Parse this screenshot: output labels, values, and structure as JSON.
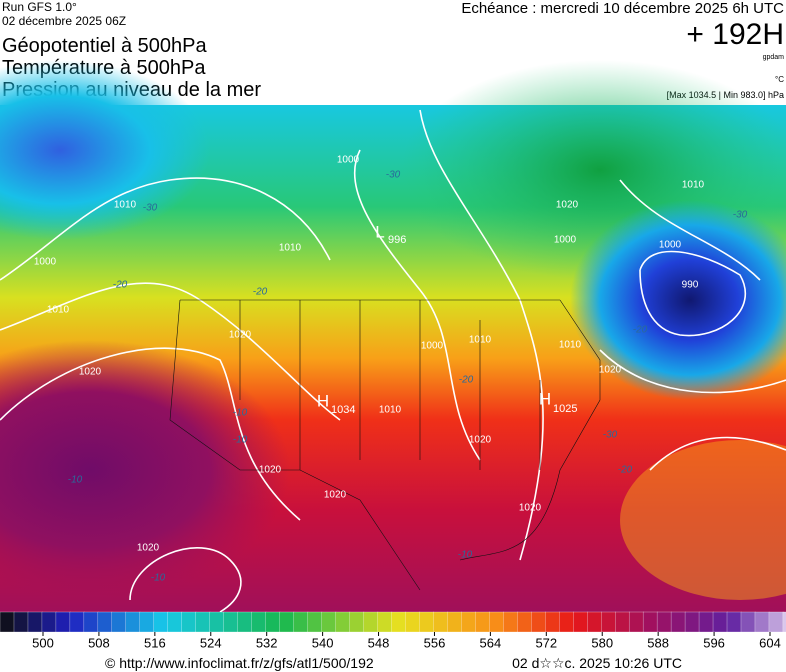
{
  "header": {
    "run": "Run GFS 1.0°",
    "date": "02 décembre 2025 06Z",
    "fields": [
      "Géopotentiel à 500hPa",
      "Température à 500hPa",
      "Pression au niveau de la mer"
    ],
    "echeance": "Echéance : mercredi 10 décembre 2025 6h UTC",
    "lead": "+ 192H",
    "unit_geo": "gpdam",
    "unit_temp": "°C",
    "range": "[Max 1034.5 | Min 983.0] hPa"
  },
  "map": {
    "centers": [
      {
        "letter": "L",
        "value": "996"
      },
      {
        "letter": "H",
        "value": "1034"
      },
      {
        "letter": "H",
        "value": "1025"
      }
    ],
    "isobar_labels": [
      "1000",
      "1010",
      "1010",
      "1000",
      "1010",
      "1020",
      "1020",
      "1010",
      "1000",
      "1020",
      "1010",
      "1020",
      "1020",
      "1020",
      "1000",
      "1010",
      "1020",
      "1020",
      "990",
      "1020",
      "1000",
      "1010"
    ],
    "isotherm_labels": [
      "-30",
      "-30",
      "-20",
      "-20",
      "-10",
      "-10",
      "-10",
      "-20",
      "-30",
      "-20",
      "-30",
      "-20",
      "-10",
      "-10"
    ]
  },
  "colorbar": {
    "ticks": [
      500,
      508,
      516,
      524,
      532,
      540,
      548,
      556,
      564,
      572,
      580,
      588,
      596,
      604
    ]
  },
  "footer": {
    "url": "© http://www.infoclimat.fr/z/gfs/atl1/500/192",
    "stamp": "02 d☆☆c. 2025 10:26 UTC"
  }
}
